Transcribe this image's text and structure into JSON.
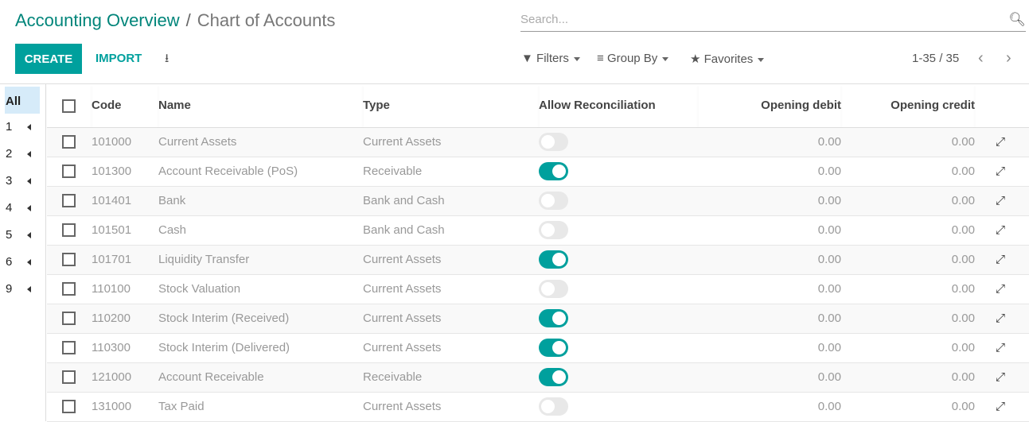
{
  "breadcrumb": {
    "parent": "Accounting Overview",
    "separator": "/",
    "current": "Chart of Accounts"
  },
  "search": {
    "placeholder": "Search...",
    "icon": "search-icon"
  },
  "toolbar": {
    "create": "CREATE",
    "import": "IMPORT",
    "download_icon": "download-icon"
  },
  "filters": {
    "filters": "Filters",
    "group_by": "Group By",
    "favorites": "Favorites"
  },
  "pager": {
    "text": "1-35 / 35"
  },
  "sidebar": {
    "all": "All",
    "items": [
      "1",
      "2",
      "3",
      "4",
      "5",
      "6",
      "9"
    ]
  },
  "table": {
    "headers": {
      "code": "Code",
      "name": "Name",
      "type": "Type",
      "reconcile": "Allow Reconciliation",
      "debit": "Opening debit",
      "credit": "Opening credit"
    },
    "rows": [
      {
        "code": "101000",
        "name": "Current Assets",
        "type": "Current Assets",
        "reconcile": false,
        "debit": "0.00",
        "credit": "0.00"
      },
      {
        "code": "101300",
        "name": "Account Receivable (PoS)",
        "type": "Receivable",
        "reconcile": true,
        "debit": "0.00",
        "credit": "0.00"
      },
      {
        "code": "101401",
        "name": "Bank",
        "type": "Bank and Cash",
        "reconcile": false,
        "debit": "0.00",
        "credit": "0.00"
      },
      {
        "code": "101501",
        "name": "Cash",
        "type": "Bank and Cash",
        "reconcile": false,
        "debit": "0.00",
        "credit": "0.00"
      },
      {
        "code": "101701",
        "name": "Liquidity Transfer",
        "type": "Current Assets",
        "reconcile": true,
        "debit": "0.00",
        "credit": "0.00"
      },
      {
        "code": "110100",
        "name": "Stock Valuation",
        "type": "Current Assets",
        "reconcile": false,
        "debit": "0.00",
        "credit": "0.00"
      },
      {
        "code": "110200",
        "name": "Stock Interim (Received)",
        "type": "Current Assets",
        "reconcile": true,
        "debit": "0.00",
        "credit": "0.00"
      },
      {
        "code": "110300",
        "name": "Stock Interim (Delivered)",
        "type": "Current Assets",
        "reconcile": true,
        "debit": "0.00",
        "credit": "0.00"
      },
      {
        "code": "121000",
        "name": "Account Receivable",
        "type": "Receivable",
        "reconcile": true,
        "debit": "0.00",
        "credit": "0.00"
      },
      {
        "code": "131000",
        "name": "Tax Paid",
        "type": "Current Assets",
        "reconcile": false,
        "debit": "0.00",
        "credit": "0.00"
      }
    ]
  },
  "colors": {
    "brand": "#00a09d",
    "link": "#00857a"
  }
}
